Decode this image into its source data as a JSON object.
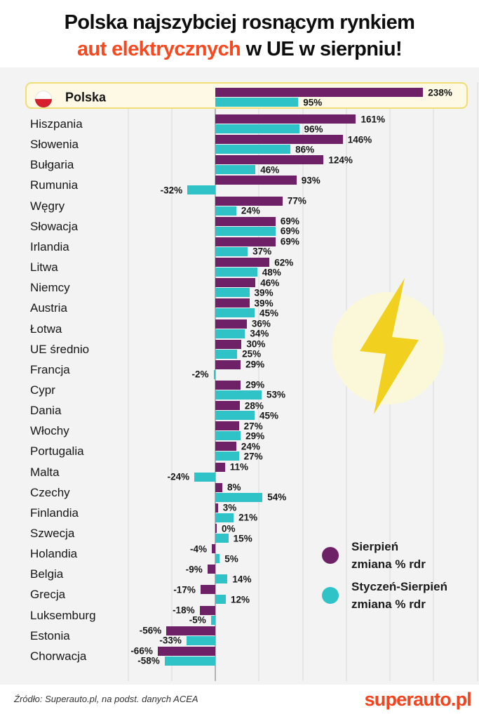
{
  "title": {
    "line1": "Polska najszybciej rosnącym rynkiem",
    "line2_accent": "aut elektrycznych",
    "line2_rest": " w UE w sierpniu!"
  },
  "legend": {
    "items": [
      {
        "line1": "Sierpień",
        "line2": "zmiana % rdr",
        "color": "#6e2167"
      },
      {
        "line1": "Styczeń-Sierpień",
        "line2": "zmiana % rdr",
        "color": "#2fc3c7"
      }
    ]
  },
  "chart_data": {
    "type": "bar",
    "orientation": "horizontal",
    "unit": "%",
    "grid": true,
    "gridline_step": 50,
    "xlim": [
      -100,
      300
    ],
    "highlight": "Polska",
    "categories": [
      "Polska",
      "Hiszpania",
      "Słowenia",
      "Bułgaria",
      "Rumunia",
      "Węgry",
      "Słowacja",
      "Irlandia",
      "Litwa",
      "Niemcy",
      "Austria",
      "Łotwa",
      "UE średnio",
      "Francja",
      "Cypr",
      "Dania",
      "Włochy",
      "Portugalia",
      "Malta",
      "Czechy",
      "Finlandia",
      "Szwecja",
      "Holandia",
      "Belgia",
      "Grecja",
      "Luksemburg",
      "Estonia",
      "Chorwacja"
    ],
    "series": [
      {
        "name": "Sierpień zmiana % rdr",
        "color": "#6e2167",
        "values": [
          238,
          161,
          146,
          124,
          93,
          77,
          69,
          69,
          62,
          46,
          39,
          36,
          30,
          29,
          29,
          28,
          27,
          24,
          11,
          8,
          3,
          0,
          -4,
          -9,
          -17,
          -18,
          -56,
          -66
        ],
        "labels": [
          "238%",
          "161%",
          "146%",
          "124%",
          "93%",
          "77%",
          "69%",
          "69%",
          "62%",
          "46%",
          "39%",
          "36%",
          "30%",
          "29%",
          "29%",
          "28%",
          "27%",
          "24%",
          "11%",
          "8%",
          "3%",
          "0%",
          "-4%",
          "-9%",
          "-17%",
          "-18%",
          "-56%",
          "-66%"
        ]
      },
      {
        "name": "Styczeń-Sierpień zmiana % rdr",
        "color": "#2fc3c7",
        "values": [
          95,
          96,
          86,
          46,
          -32,
          24,
          69,
          37,
          48,
          39,
          45,
          34,
          25,
          -2,
          53,
          45,
          29,
          27,
          -24,
          54,
          21,
          15,
          5,
          14,
          12,
          -5,
          -33,
          -58
        ],
        "labels": [
          "95%",
          "96%",
          "86%",
          "46%",
          "-32%",
          "24%",
          "69%",
          "37%",
          "48%",
          "39%",
          "45%",
          "34%",
          "25%",
          "-2%",
          "53%",
          "45%",
          "29%",
          "27%",
          "-24%",
          "54%",
          "21%",
          "15%",
          "5%",
          "14%",
          "12%",
          "-5%",
          "-33%",
          "-58%"
        ]
      }
    ]
  },
  "decorations": {
    "flag_icon": "poland-flag",
    "lightning_icon": "lightning-bolt",
    "highlight_background": "#fdf9e4",
    "highlight_border": "#f2dc74",
    "bolt_color": "#f1d01f",
    "bolt_circle_color": "#fbf8da"
  },
  "colors": {
    "accent_orange": "#f9471f",
    "chart_background": "#f3f3f3"
  },
  "footer": {
    "source": "Źródło: Superauto.pl, na podst. danych ACEA",
    "logo": "superauto.pl"
  }
}
